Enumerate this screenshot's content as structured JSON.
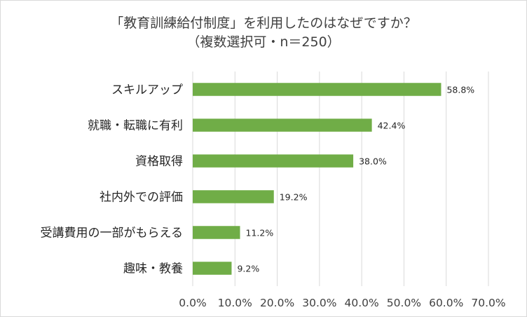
{
  "chart_data": {
    "type": "bar",
    "orientation": "horizontal",
    "title": "「教育訓練給付制度」を利用したのはなぜですか？",
    "subtitle": "（複数選択可・n＝250）",
    "categories": [
      "スキルアップ",
      "就職・転職に有利",
      "資格取得",
      "社内外での評価",
      "受講費用の一部がもらえる",
      "趣味・教養"
    ],
    "values": [
      58.8,
      42.4,
      38.0,
      19.2,
      11.2,
      9.2
    ],
    "value_labels": [
      "58.8%",
      "42.4%",
      "38.0%",
      "19.2%",
      "11.2%",
      "9.2%"
    ],
    "xlim": [
      0,
      70
    ],
    "x_ticks": [
      0,
      10,
      20,
      30,
      40,
      50,
      60,
      70
    ],
    "x_tick_labels": [
      "0.0%",
      "10.0%",
      "20.0%",
      "30.0%",
      "40.0%",
      "50.0%",
      "60.0%",
      "70.0%"
    ],
    "grid": "vertical",
    "legend": "none",
    "colors": {
      "bar": "#70ad47",
      "grid": "#d9d9d9",
      "text": "#404040"
    }
  }
}
